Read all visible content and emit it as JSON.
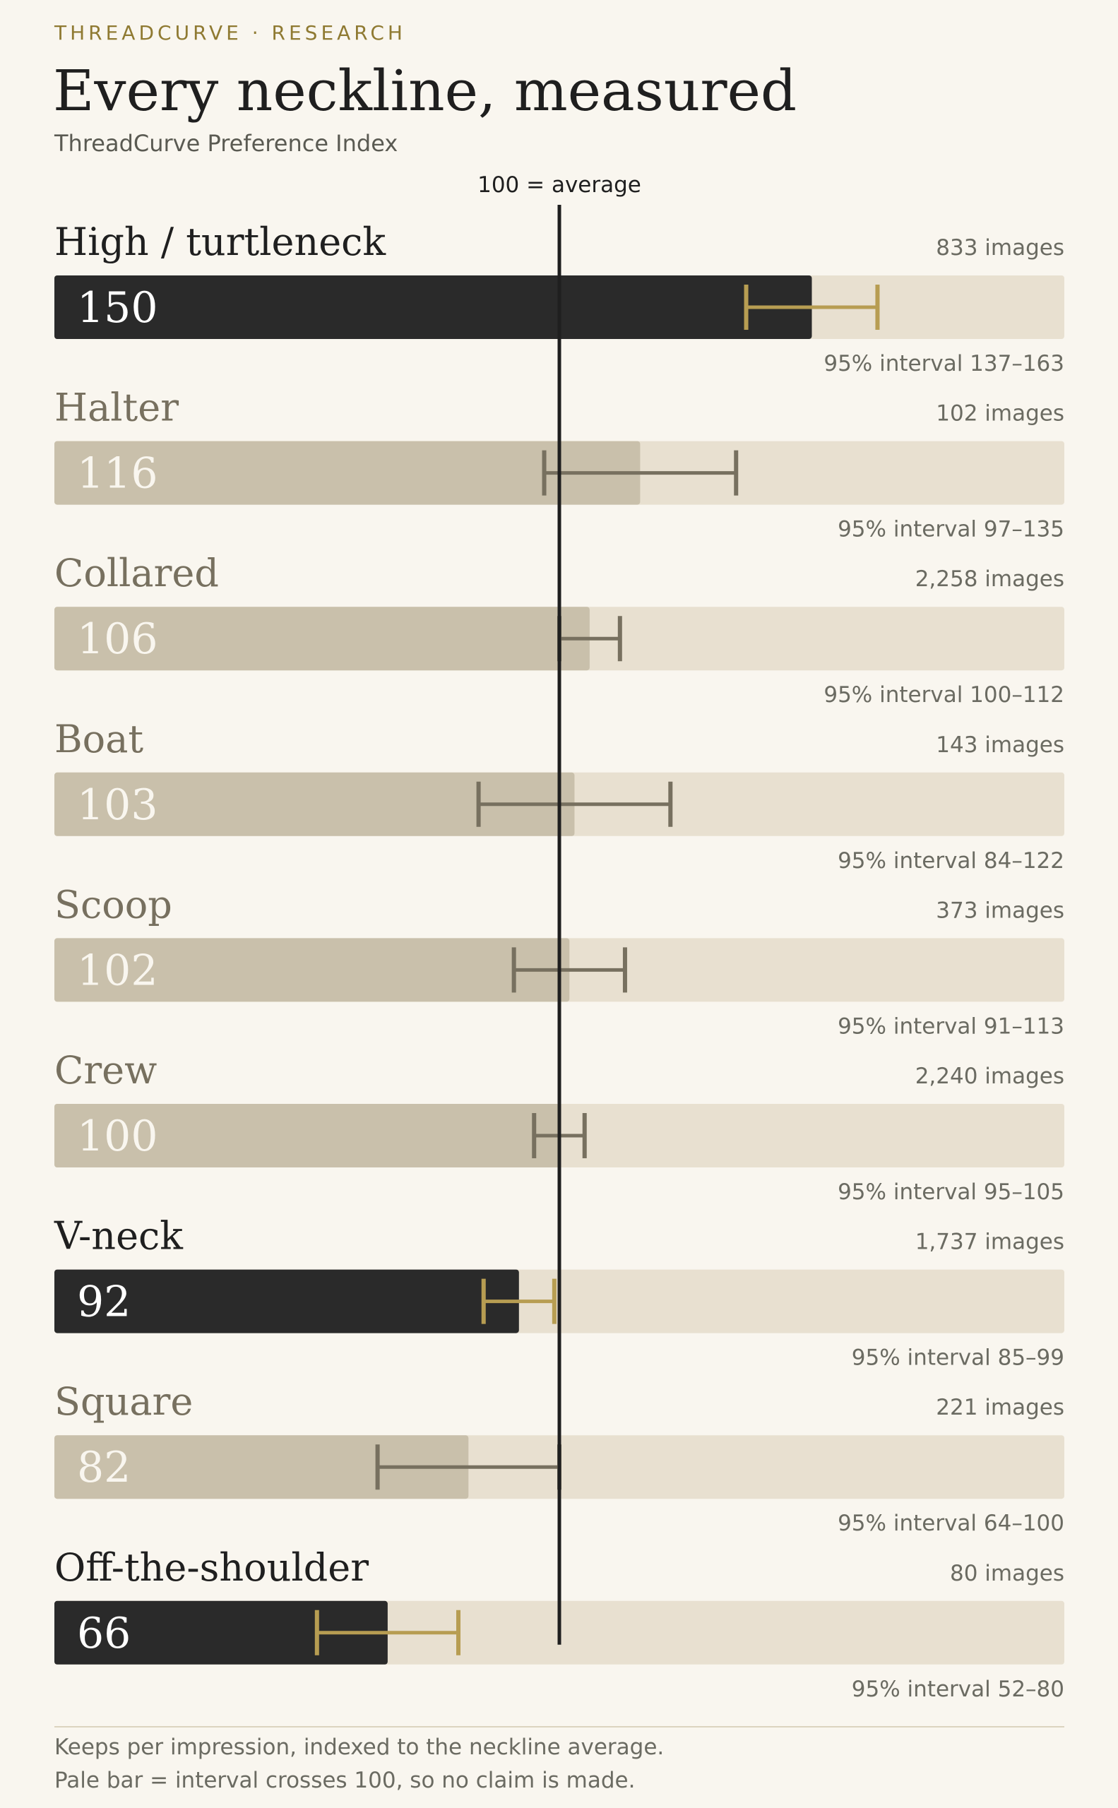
{
  "header": {
    "eyebrow": "THREADCURVE · RESEARCH",
    "title": "Every neckline, measured",
    "subtitle": "ThreadCurve Preference Index"
  },
  "chart_data": {
    "type": "bar",
    "orientation": "horizontal",
    "reference_value": 100,
    "reference_label": "100 = average",
    "xlim": [
      0,
      200
    ],
    "grid": false,
    "categories": [
      "High / turtleneck",
      "Halter",
      "Collared",
      "Boat",
      "Scoop",
      "Crew",
      "V-neck",
      "Square",
      "Off-the-shoulder"
    ],
    "values": [
      150,
      116,
      106,
      103,
      102,
      100,
      92,
      82,
      66
    ],
    "value_labels": [
      "150",
      "116",
      "106",
      "103",
      "102",
      "100",
      "92",
      "82",
      "66"
    ],
    "ci_low": [
      137,
      97,
      100,
      84,
      91,
      95,
      85,
      64,
      52
    ],
    "ci_high": [
      163,
      135,
      112,
      122,
      113,
      105,
      99,
      100,
      80
    ],
    "ci_labels": [
      "95% interval 137–163",
      "95% interval 97–135",
      "95% interval 100–112",
      "95% interval 84–122",
      "95% interval 91–113",
      "95% interval 95–105",
      "95% interval 85–99",
      "95% interval 64–100",
      "95% interval 52–80"
    ],
    "counts": [
      "833 images",
      "102 images",
      "2,258 images",
      "143 images",
      "373 images",
      "2,240 images",
      "1,737 images",
      "221 images",
      "80 images"
    ],
    "significant": [
      true,
      false,
      false,
      false,
      false,
      false,
      true,
      false,
      true
    ],
    "colors": {
      "significant_bar": "#2a2a2a",
      "pale_bar": "#c9c0ab",
      "track": "#e8e0d0",
      "significant_ci": "#b79d52",
      "pale_ci": "#77705f",
      "reference_line": "#1f1f1f",
      "significant_label": "#1f1f1f",
      "pale_label": "#77705f"
    }
  },
  "footer": {
    "note_1": "Keeps per impression, indexed to the neckline average.",
    "note_2": "Pale bar = interval crosses 100, so no claim is made."
  }
}
